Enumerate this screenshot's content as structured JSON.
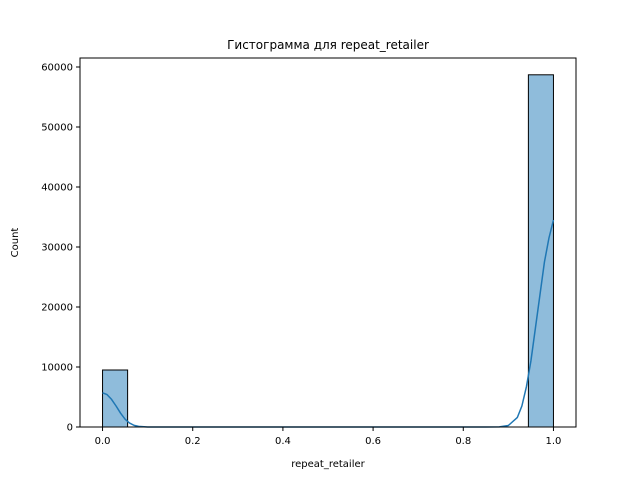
{
  "chart_data": {
    "type": "bar",
    "title": "Гистограмма для repeat_retailer",
    "xlabel": "repeat_retailer",
    "ylabel": "Count",
    "xlim": [
      -0.05,
      1.05
    ],
    "ylim": [
      0,
      61500
    ],
    "x_ticks": [
      0.0,
      0.2,
      0.4,
      0.6,
      0.8,
      1.0
    ],
    "x_tick_labels": [
      "0.0",
      "0.2",
      "0.4",
      "0.6",
      "0.8",
      "1.0"
    ],
    "y_ticks": [
      0,
      10000,
      20000,
      30000,
      40000,
      50000,
      60000
    ],
    "y_tick_labels": [
      "0",
      "10000",
      "20000",
      "30000",
      "40000",
      "50000",
      "60000"
    ],
    "bins": [
      {
        "x0": 0.0,
        "x1": 0.0556,
        "count": 9500
      },
      {
        "x0": 0.9444,
        "x1": 1.0,
        "count": 58700
      }
    ],
    "kde": {
      "x": [
        0.0,
        0.01,
        0.02,
        0.03,
        0.04,
        0.05,
        0.06,
        0.07,
        0.08,
        0.1,
        0.12,
        0.15,
        0.2,
        0.3,
        0.5,
        0.7,
        0.8,
        0.85,
        0.88,
        0.9,
        0.92,
        0.93,
        0.94,
        0.95,
        0.96,
        0.97,
        0.98,
        0.99,
        1.0
      ],
      "y": [
        5700,
        5400,
        4600,
        3500,
        2300,
        1300,
        650,
        270,
        100,
        10,
        0,
        0,
        0,
        0,
        0,
        0,
        0,
        0,
        20,
        250,
        1600,
        3500,
        6700,
        11000,
        16500,
        22000,
        27500,
        31500,
        34500
      ]
    },
    "grid": false,
    "legend": "none",
    "colors": {
      "bar_fill": "#8fbcdb",
      "bar_edge": "#000000",
      "kde_line": "#1f77b4"
    }
  }
}
